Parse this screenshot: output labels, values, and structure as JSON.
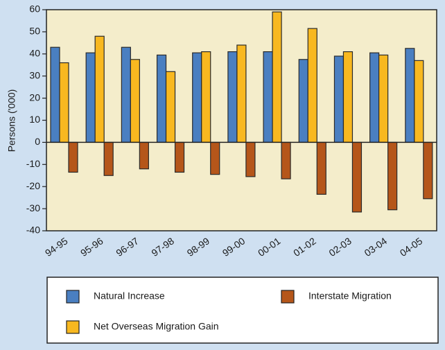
{
  "chart_data": {
    "type": "bar",
    "y_label": "Persons ('000)",
    "categories": [
      "94-95",
      "95-96",
      "96-97",
      "97-98",
      "98-99",
      "99-00",
      "00-01",
      "01-02",
      "02-03",
      "03-04",
      "04-05"
    ],
    "series": [
      {
        "name": "Natural Increase",
        "color": "#4a7fc1",
        "values": [
          43,
          40.5,
          43,
          39.5,
          40.5,
          41,
          41,
          37.5,
          39,
          40.5,
          42.5
        ]
      },
      {
        "name": "Net Overseas Migration Gain",
        "color": "#f8b820",
        "values": [
          36,
          48,
          37.5,
          32,
          41,
          44,
          59,
          51.5,
          41,
          39.5,
          37
        ]
      },
      {
        "name": "Interstate Migration",
        "color": "#b5561a",
        "values": [
          -13.5,
          -15,
          -12,
          -13.5,
          -14.5,
          -15.5,
          -16.5,
          -23.5,
          -31.5,
          -30.5,
          -25.5
        ]
      }
    ],
    "ylim": [
      -40,
      60
    ],
    "yticks": [
      -40,
      -30,
      -20,
      -10,
      0,
      10,
      20,
      30,
      40,
      50,
      60
    ]
  }
}
